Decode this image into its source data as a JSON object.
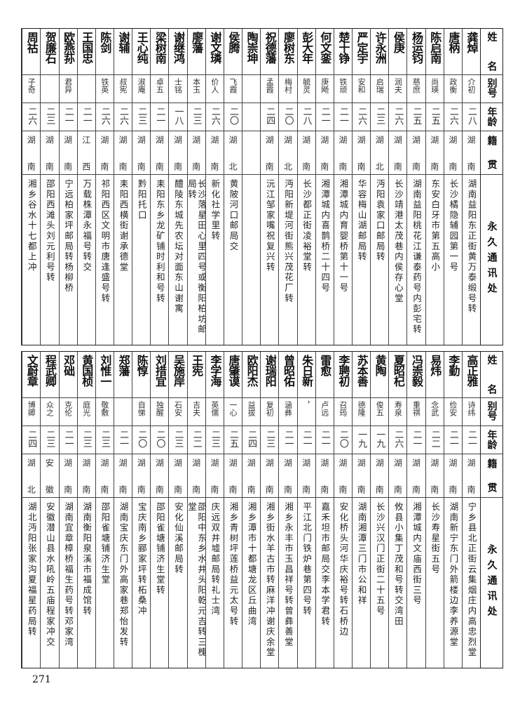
{
  "headers": {
    "name": "姓名",
    "alias": "别号",
    "age": "年龄",
    "native": "籍贯",
    "address": "永久通讯处"
  },
  "top_rows": [
    {
      "name": "龚焯",
      "alias": "介初",
      "age": "二八",
      "native": "湖南",
      "address": "湖南益阳东正街黄万泰缎号转"
    },
    {
      "name": "唐柄",
      "alias": "政衡",
      "age": "二六",
      "native": "湖南",
      "address": "长沙橘隐辅园第一号"
    },
    {
      "name": "陈启南",
      "alias": "尚瑛",
      "age": "二五",
      "native": "湖南",
      "address": "东安白牙市第五高小"
    },
    {
      "name": "杨运钧",
      "alias": "慈庶",
      "age": "二五",
      "native": "湖南",
      "address": "湖南益阳桃花江谦泰药号内彭宅转"
    },
    {
      "name": "侯庚",
      "alias": "润夫",
      "age": "二六",
      "native": "湖南",
      "address": "长沙靖港太茂巷内侯存心堂"
    },
    {
      "name": "许永洲",
      "alias": "启瑞",
      "age": "二三",
      "native": "湖北",
      "address": "沔阳袁家口邮局转"
    },
    {
      "name": "严定宇",
      "alias": "安和",
      "age": "二六",
      "native": "湖南",
      "address": "华容梅山湖邮局转"
    },
    {
      "name": "楚十铮",
      "alias": "铁顽",
      "age": "二一",
      "native": "湖南",
      "address": "湘潭城内育婴桥第十一号"
    },
    {
      "name": "何文銮",
      "alias": "庚飏",
      "age": "二一",
      "native": "湖南",
      "address": "湘潭城内喜鹊桥二十四号"
    },
    {
      "name": "彭大年",
      "alias": "毓灵",
      "age": "二八",
      "native": "湖南",
      "address": "长沙都正街凌裕堂转"
    },
    {
      "name": "廖树东",
      "alias": "梅村",
      "age": "二〇",
      "native": "湖北",
      "address": "沔阳新堤河街熊兴茂花厂转"
    },
    {
      "name": "祝德藩",
      "alias": "孟霞",
      "age": "二四",
      "native": "湖南",
      "address": "沅江邹家嘴祝复兴转"
    },
    {
      "name": "陶崇坤",
      "alias": "",
      "age": "",
      "native": "",
      "address": ""
    },
    {
      "name": "侯腾",
      "alias": "飞霞",
      "age": "二〇",
      "native": "湖北",
      "address": "黄陂河口邮局交"
    },
    {
      "name": "谢文璘",
      "alias": "价人",
      "age": "二六",
      "native": "湖南",
      "address": "新化社学里转"
    },
    {
      "name": "廖藩",
      "alias": "本玉",
      "age": "二三",
      "native": "湖南",
      "address": "长沙落星田心里四号或衡阳柏坊邮局转"
    },
    {
      "name": "谢继鸿",
      "alias": "士铭",
      "age": "一八",
      "native": "湖南",
      "address": "醴陵东城先农坛对面东山谢寓"
    },
    {
      "name": "梁树南",
      "alias": "卓五",
      "age": "二一",
      "native": "湖南",
      "address": "耒阳东乡龙矿铺时利和号转"
    },
    {
      "name": "王心纯",
      "alias": "淑庵",
      "age": "二三",
      "native": "湖南",
      "address": "黔阳托口"
    },
    {
      "name": "谢辅",
      "alias": "叔宪",
      "age": "二六",
      "native": "湖南",
      "address": "耒阳西横街谢承德堂"
    },
    {
      "name": "陈剑",
      "alias": "铁英",
      "age": "二六",
      "native": "湖南",
      "address": "祁阳西区文明市唐逢盛号转"
    },
    {
      "name": "王国忠",
      "alias": "",
      "age": "二一",
      "native": "江西",
      "address": "万载株潭永福号转交"
    },
    {
      "name": "欧燕荪",
      "alias": "君异",
      "age": "二一",
      "native": "湖南",
      "address": "宁远柏家坪邮局转杨柳桥"
    },
    {
      "name": "贺廉石",
      "alias": "",
      "age": "二三",
      "native": "湖南",
      "address": "邵阳西滩头刘元利号转"
    },
    {
      "name": "周祜",
      "alias": "子奇",
      "age": "二六",
      "native": "湖南",
      "address": "湘乡谷水十七都上冲"
    }
  ],
  "bottom_rows": [
    {
      "name": "高正雅",
      "alias": "诗纬",
      "age": "二一",
      "native": "湖南",
      "address": "宁乡县北正街云集烟庄内高忠烈堂"
    },
    {
      "name": "李勤",
      "alias": "俭安",
      "age": "二一",
      "native": "湖南",
      "address": "湖南新宁东门外箭楼边李养源堂"
    },
    {
      "name": "易炜",
      "alias": "念武",
      "age": "二二",
      "native": "湖南",
      "address": "长沙寿星街五号"
    },
    {
      "name": "冯崇毅",
      "alias": "重祺",
      "age": "二一",
      "native": "湖南",
      "address": "湘潭城内文庙西街三号"
    },
    {
      "name": "夏昭杞",
      "alias": "寿泉",
      "age": "二六",
      "native": "湖南",
      "address": "攸县小集丁茂和号转交湾田"
    },
    {
      "name": "黄陶",
      "alias": "俊五",
      "age": "一九",
      "native": "湖南",
      "address": "长沙兴汉门正街二十五号"
    },
    {
      "name": "苏本善",
      "alias": "德隆",
      "age": "一九",
      "native": "湖南",
      "address": "湖南湘潭三门市公和祥"
    },
    {
      "name": "李聘初",
      "alias": "召筠",
      "age": "二〇",
      "native": "湖南",
      "address": "安化桥头河华庆裕号转石桥边"
    },
    {
      "name": "雷愈",
      "alias": "卢远",
      "age": "二一",
      "native": "湖南",
      "address": "嘉禾坦市邮局交李本学君转"
    },
    {
      "name": "朱日新",
      "alias": "，",
      "age": "二一",
      "native": "湖南",
      "address": "平江北门铁炉巷第四号转"
    },
    {
      "name": "曾昭佑",
      "alias": "涵彝",
      "age": "二一",
      "native": "湖南",
      "address": "湘乡永丰市玉昌祥号转曾彝善堂"
    },
    {
      "name": "谢瑞阳",
      "alias": "复初",
      "age": "二三",
      "native": "湖南",
      "address": "湘乡街水羊古市转麻洋冲谢庆余堂"
    },
    {
      "name": "欧阳杰",
      "alias": "益拔",
      "age": "二四",
      "native": "湖南",
      "address": "湘乡潭市十都塘龙区丘曲湾"
    },
    {
      "name": "唐肇谟",
      "alias": "一心",
      "age": "二五",
      "native": "湖南",
      "address": "湘乡青树坪莲桥益元太号转"
    },
    {
      "name": "李学海",
      "alias": "英儒",
      "age": "二三",
      "native": "湖南",
      "address": "庆远双井墟邮局转礼士湾"
    },
    {
      "name": "王宪",
      "alias": "吉夫",
      "age": "二二",
      "native": "湖南",
      "address": "邵阳中东乡水井头阳乾元吉转三槐堂"
    },
    {
      "name": "吴施岸",
      "alias": "石安",
      "age": "二三",
      "native": "湖南",
      "address": "安化仙溪邮局转"
    },
    {
      "name": "刘措宜",
      "alias": "独醒",
      "age": "二〇",
      "native": "湖南",
      "address": "邵阳雀塘铺济生堂转"
    },
    {
      "name": "陈惇",
      "alias": "自悌",
      "age": "二〇",
      "native": "湖南",
      "address": "宝庆南乡郦家坪转柘桑冲"
    },
    {
      "name": "郑藩",
      "alias": "",
      "age": "二一",
      "native": "湖南",
      "address": "湖南宝庆东门外高家巷郑怡发转"
    },
    {
      "name": "刘惟一",
      "alias": "敬敷",
      "age": "二三",
      "native": "湖南",
      "address": "邵阳雀塘铺济生堂"
    },
    {
      "name": "黄国桢",
      "alias": "庭光",
      "age": "二三",
      "native": "湖南",
      "address": "湖南衡阳泉溪市福成馆转"
    },
    {
      "name": "邓础",
      "alias": "克伦",
      "age": "二一",
      "native": "湖南",
      "address": "湖南宜章樟桥福生药号转邓家湾"
    },
    {
      "name": "程武卿",
      "alias": "众之",
      "age": "二三",
      "native": "安徽",
      "address": "安徽潜山县水吼岭五庙程家冲交"
    },
    {
      "name": "文蔚章",
      "alias": "博卿",
      "age": "二四",
      "native": "湖北",
      "address": "湖北沔阳张家沟夏福星药局转"
    }
  ],
  "page_number": "271"
}
